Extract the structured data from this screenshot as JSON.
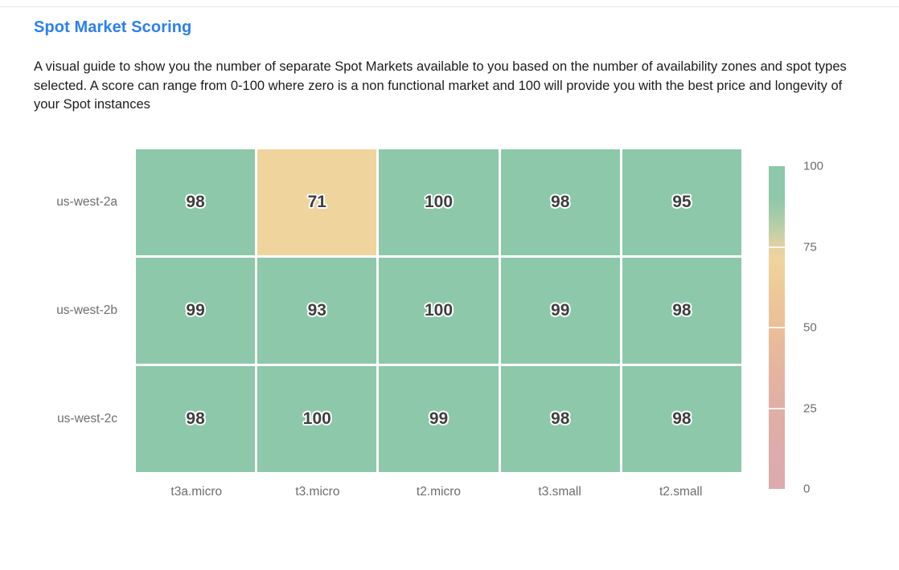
{
  "page": {
    "title": "Spot Market Scoring",
    "description": "A visual guide to show you the number of separate Spot Markets available to you based on the number of availability zones and spot types selected. A score can range from 0-100 where zero is a non functional market and 100 will provide you with the best price and longevity of your Spot instances"
  },
  "colors": {
    "title": "#2d7ff2",
    "body_text": "#1c1c1c",
    "axis_label": "#6d6d6d",
    "cell_value_text": "#3f3f3f",
    "grid_gap": "#ffffff",
    "divider": "#e6e6e6"
  },
  "chart_data": {
    "type": "heatmap",
    "title": "Spot Market Scoring",
    "x_categories": [
      "t3a.micro",
      "t3.micro",
      "t2.micro",
      "t3.small",
      "t2.small"
    ],
    "y_categories": [
      "us-west-2a",
      "us-west-2b",
      "us-west-2c"
    ],
    "values": [
      [
        98,
        71,
        100,
        98,
        95
      ],
      [
        99,
        93,
        100,
        99,
        98
      ],
      [
        98,
        100,
        99,
        98,
        98
      ]
    ],
    "value_range": [
      0,
      100
    ],
    "legend": {
      "position": "right",
      "ticks": [
        "100",
        "75",
        "50",
        "25",
        "0"
      ],
      "tick_positions_pct": [
        0,
        25,
        50,
        75,
        100
      ]
    },
    "colorscale": [
      {
        "v": 0,
        "color": "#dcabae"
      },
      {
        "v": 12,
        "color": "#ddacab"
      },
      {
        "v": 25,
        "color": "#e0afa5"
      },
      {
        "v": 38,
        "color": "#e6b59e"
      },
      {
        "v": 50,
        "color": "#ebbf97"
      },
      {
        "v": 60,
        "color": "#edc898"
      },
      {
        "v": 71,
        "color": "#f0d49e"
      },
      {
        "v": 75,
        "color": "#e2d2a2"
      },
      {
        "v": 81,
        "color": "#b9cfa6"
      },
      {
        "v": 90,
        "color": "#8dc8ab"
      },
      {
        "v": 100,
        "color": "#8dc8ab"
      }
    ]
  }
}
